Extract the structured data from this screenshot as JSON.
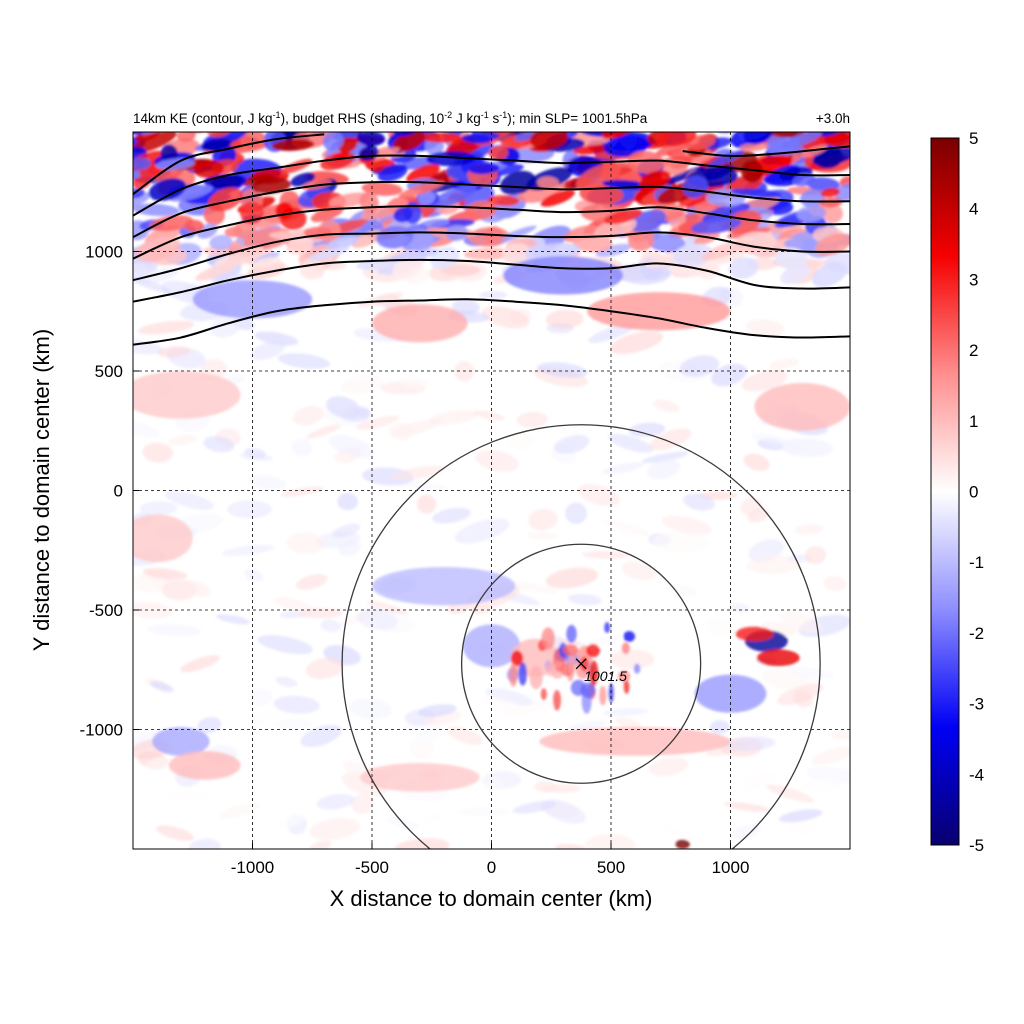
{
  "chart_data": {
    "type": "heatmap",
    "title": {
      "main": "14km KE (contour, J kg",
      "sup1": "-1",
      "mid1": "), budget RHS (shading, 10",
      "sup2": "-2",
      "mid2": " J kg",
      "sup3": "-1",
      "mid3": " s",
      "sup4": "-1",
      "tail": "); min SLP= 1001.5hPa"
    },
    "time_label": "+3.0h",
    "xlabel": "X distance to domain center (km)",
    "ylabel": "Y distance to domain center (km)",
    "xlim": [
      -1500,
      1500
    ],
    "ylim": [
      -1500,
      1500
    ],
    "xticks": [
      -1000,
      -500,
      0,
      500,
      1000
    ],
    "yticks": [
      1000,
      500,
      0,
      -500,
      -1000
    ],
    "grid": true,
    "colorbar": {
      "range": [
        -5,
        5
      ],
      "ticks": [
        5,
        4,
        3,
        2,
        1,
        0,
        -1,
        -2,
        -3,
        -4,
        -5
      ],
      "colors": [
        "#08006e",
        "#0000f5",
        "#8e8eff",
        "#ffffff",
        "#ff8e8e",
        "#f50000",
        "#7a0000"
      ]
    },
    "storm_center": {
      "x": 375,
      "y": -725,
      "label": "1001.5"
    },
    "range_rings_km": [
      500,
      1000
    ],
    "ke_contours": [
      [
        [
          -1500,
          610
        ],
        [
          -1300,
          640
        ],
        [
          -1100,
          700
        ],
        [
          -900,
          750
        ],
        [
          -700,
          775
        ],
        [
          -500,
          790
        ],
        [
          -300,
          795
        ],
        [
          -100,
          800
        ],
        [
          100,
          790
        ],
        [
          300,
          775
        ],
        [
          500,
          750
        ],
        [
          700,
          720
        ],
        [
          900,
          680
        ],
        [
          1100,
          650
        ],
        [
          1300,
          640
        ],
        [
          1500,
          645
        ]
      ],
      [
        [
          -1500,
          790
        ],
        [
          -1300,
          830
        ],
        [
          -1100,
          880
        ],
        [
          -900,
          920
        ],
        [
          -700,
          950
        ],
        [
          -500,
          960
        ],
        [
          -300,
          965
        ],
        [
          -100,
          960
        ],
        [
          100,
          945
        ],
        [
          300,
          930
        ],
        [
          500,
          930
        ],
        [
          700,
          950
        ],
        [
          900,
          920
        ],
        [
          1100,
          860
        ],
        [
          1300,
          845
        ],
        [
          1500,
          850
        ]
      ],
      [
        [
          -1500,
          880
        ],
        [
          -1300,
          930
        ],
        [
          -1100,
          990
        ],
        [
          -900,
          1040
        ],
        [
          -700,
          1070
        ],
        [
          -500,
          1075
        ],
        [
          -300,
          1080
        ],
        [
          -100,
          1075
        ],
        [
          100,
          1065
        ],
        [
          300,
          1060
        ],
        [
          500,
          1065
        ],
        [
          700,
          1080
        ],
        [
          900,
          1060
        ],
        [
          1100,
          1020
        ],
        [
          1300,
          1000
        ],
        [
          1500,
          1000
        ]
      ],
      [
        [
          -1500,
          970
        ],
        [
          -1300,
          1060
        ],
        [
          -1100,
          1110
        ],
        [
          -900,
          1150
        ],
        [
          -700,
          1175
        ],
        [
          -500,
          1185
        ],
        [
          -300,
          1190
        ],
        [
          -100,
          1185
        ],
        [
          100,
          1175
        ],
        [
          300,
          1165
        ],
        [
          500,
          1170
        ],
        [
          700,
          1185
        ],
        [
          900,
          1160
        ],
        [
          1100,
          1130
        ],
        [
          1300,
          1115
        ],
        [
          1500,
          1115
        ]
      ],
      [
        [
          -1500,
          1060
        ],
        [
          -1300,
          1160
        ],
        [
          -1100,
          1210
        ],
        [
          -900,
          1250
        ],
        [
          -700,
          1280
        ],
        [
          -500,
          1290
        ],
        [
          -300,
          1290
        ],
        [
          -100,
          1280
        ],
        [
          100,
          1270
        ],
        [
          300,
          1260
        ],
        [
          500,
          1265
        ],
        [
          700,
          1270
        ],
        [
          900,
          1250
        ],
        [
          1100,
          1225
        ],
        [
          1300,
          1210
        ],
        [
          1500,
          1210
        ]
      ],
      [
        [
          -1500,
          1150
        ],
        [
          -1300,
          1260
        ],
        [
          -1100,
          1320
        ],
        [
          -900,
          1350
        ],
        [
          -700,
          1380
        ],
        [
          -500,
          1400
        ],
        [
          -300,
          1400
        ],
        [
          -100,
          1390
        ],
        [
          100,
          1380
        ],
        [
          300,
          1370
        ],
        [
          500,
          1375
        ],
        [
          700,
          1380
        ],
        [
          900,
          1360
        ],
        [
          1100,
          1340
        ],
        [
          1300,
          1320
        ],
        [
          1500,
          1320
        ]
      ],
      [
        [
          -1500,
          1240
        ],
        [
          -1300,
          1380
        ],
        [
          -1100,
          1430
        ],
        [
          -900,
          1470
        ],
        [
          -700,
          1490
        ]
      ],
      [
        [
          800,
          1420
        ],
        [
          1000,
          1400
        ],
        [
          1200,
          1410
        ],
        [
          1400,
          1430
        ],
        [
          1500,
          1440
        ]
      ]
    ],
    "shading_features": [
      {
        "x": 1150,
        "y": -630,
        "rx": 90,
        "ry": 45,
        "v": -4.5
      },
      {
        "x": 1200,
        "y": -700,
        "rx": 90,
        "ry": 35,
        "v": 3.5
      },
      {
        "x": 1100,
        "y": -600,
        "rx": 80,
        "ry": 30,
        "v": 3.0
      },
      {
        "x": 800,
        "y": -1480,
        "rx": 30,
        "ry": 20,
        "v": 5.0
      },
      {
        "x": 0,
        "y": -650,
        "rx": 120,
        "ry": 90,
        "v": -1.2
      },
      {
        "x": 180,
        "y": -700,
        "rx": 100,
        "ry": 80,
        "v": 1.0
      },
      {
        "x": -200,
        "y": -400,
        "rx": 300,
        "ry": 80,
        "v": -1.0
      },
      {
        "x": 1000,
        "y": -850,
        "rx": 150,
        "ry": 80,
        "v": -1.5
      },
      {
        "x": -1300,
        "y": -1050,
        "rx": 120,
        "ry": 60,
        "v": -1.3
      },
      {
        "x": -1200,
        "y": -1150,
        "rx": 150,
        "ry": 60,
        "v": 1.0
      },
      {
        "x": -300,
        "y": -1200,
        "rx": 250,
        "ry": 60,
        "v": 0.8
      },
      {
        "x": 600,
        "y": -1050,
        "rx": 400,
        "ry": 60,
        "v": 1.0
      },
      {
        "x": -1400,
        "y": -200,
        "rx": 150,
        "ry": 100,
        "v": 0.8
      },
      {
        "x": -1300,
        "y": 400,
        "rx": 250,
        "ry": 100,
        "v": 0.8
      },
      {
        "x": 1300,
        "y": 350,
        "rx": 200,
        "ry": 100,
        "v": 1.0
      },
      {
        "x": -300,
        "y": 700,
        "rx": 200,
        "ry": 80,
        "v": 1.2
      },
      {
        "x": 700,
        "y": 750,
        "rx": 300,
        "ry": 80,
        "v": 1.5
      },
      {
        "x": -1000,
        "y": 800,
        "rx": 250,
        "ry": 80,
        "v": -1.5
      },
      {
        "x": 300,
        "y": 900,
        "rx": 250,
        "ry": 80,
        "v": -1.8
      }
    ],
    "shading_upper_band": {
      "y_start": 900,
      "y_full": 1250,
      "amplitude": 4.5
    }
  }
}
